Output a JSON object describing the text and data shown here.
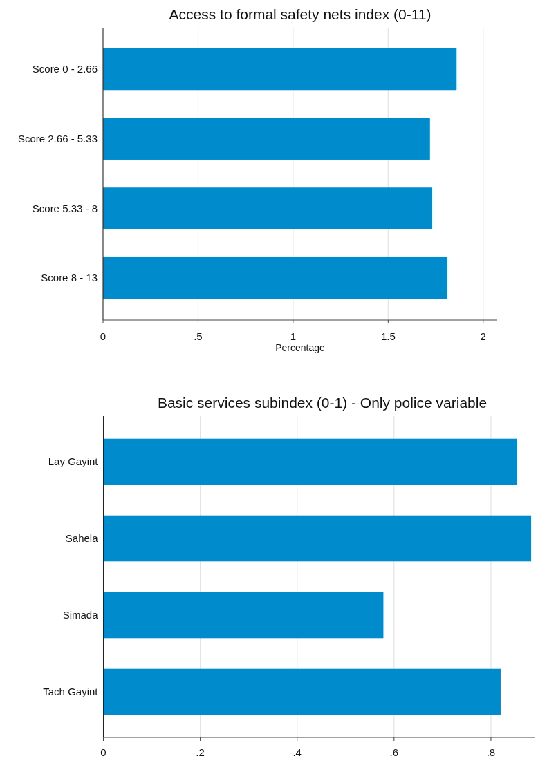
{
  "chart_data": [
    {
      "type": "bar",
      "orientation": "horizontal",
      "title": "Access to formal safety nets index (0-11)",
      "xlabel": "Percentage",
      "categories": [
        "Score 0 - 2.66",
        "Score 2.66 - 5.33",
        "Score 5.33 - 8",
        "Score 8 - 13"
      ],
      "values": [
        1.86,
        1.72,
        1.73,
        1.81
      ],
      "color": "#008bcc",
      "xlim": [
        0,
        2.07
      ],
      "xticks": [
        0,
        {
          "value": 0.5,
          "label": ".5"
        },
        1,
        {
          "value": 1.5,
          "label": "1.5"
        },
        2
      ],
      "grid": "x"
    },
    {
      "type": "bar",
      "orientation": "horizontal",
      "title": "Basic services subindex (0-1) - Only police variable",
      "categories": [
        "Lay Gayint",
        "Sahela",
        "Simada",
        "Tach Gayint"
      ],
      "values": [
        0.853,
        0.883,
        0.578,
        0.82
      ],
      "color": "#008bcc",
      "xlim": [
        0,
        0.89
      ],
      "xticks": [
        0,
        {
          "value": 0.2,
          "label": ".2"
        },
        {
          "value": 0.4,
          "label": ".4"
        },
        {
          "value": 0.6,
          "label": ".6"
        },
        {
          "value": 0.8,
          "label": ".8"
        }
      ],
      "grid": "x"
    }
  ]
}
